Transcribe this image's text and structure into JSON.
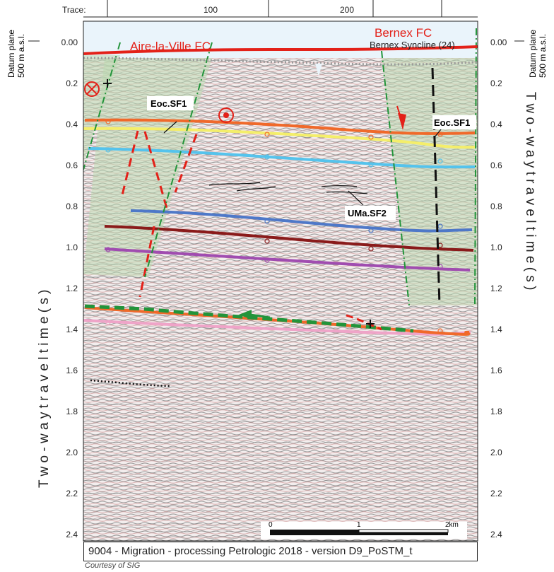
{
  "trace": {
    "label": "Trace:",
    "ticks": [
      "100",
      "200"
    ]
  },
  "datum": {
    "line1": "Datum plane",
    "line2": "500 m a.s.l."
  },
  "y_axis": {
    "title_left": "T w o - w a y   t r a v e l t i m e   ( s )",
    "title_right": "T w o - w a y   t r a v e l t i m e   ( s )",
    "ticks": [
      "0.00",
      "0.2",
      "0.4",
      "0.6",
      "0.8",
      "1.0",
      "1.2",
      "1.4",
      "1.6",
      "1.8",
      "2.0",
      "2.2",
      "2.4"
    ]
  },
  "labels": {
    "fault_left": "Aire-la-Ville FC",
    "fault_right": "Bernex FC",
    "syncline": "Bernex Syncline (24)",
    "eoc_left": "Eoc.SF1",
    "eoc_right": "Eoc.SF1",
    "uma": "UMa.SF2"
  },
  "scale": {
    "ticks": [
      "0",
      "1",
      "2km"
    ]
  },
  "caption": "9004 - Migration - processing Petrologic 2018 - version D9_PoSTM_t",
  "credit": "Courtesy of SIG",
  "colors": {
    "red": "#e32119",
    "orange": "#f0692a",
    "yellow": "#f4ee6a",
    "cyan": "#55c3ec",
    "blue": "#4e78c8",
    "darkred": "#8a1a1a",
    "purple": "#a04cb0",
    "green": "#22943a",
    "pink": "#efa4c8",
    "shade": "#bcd9b0"
  }
}
